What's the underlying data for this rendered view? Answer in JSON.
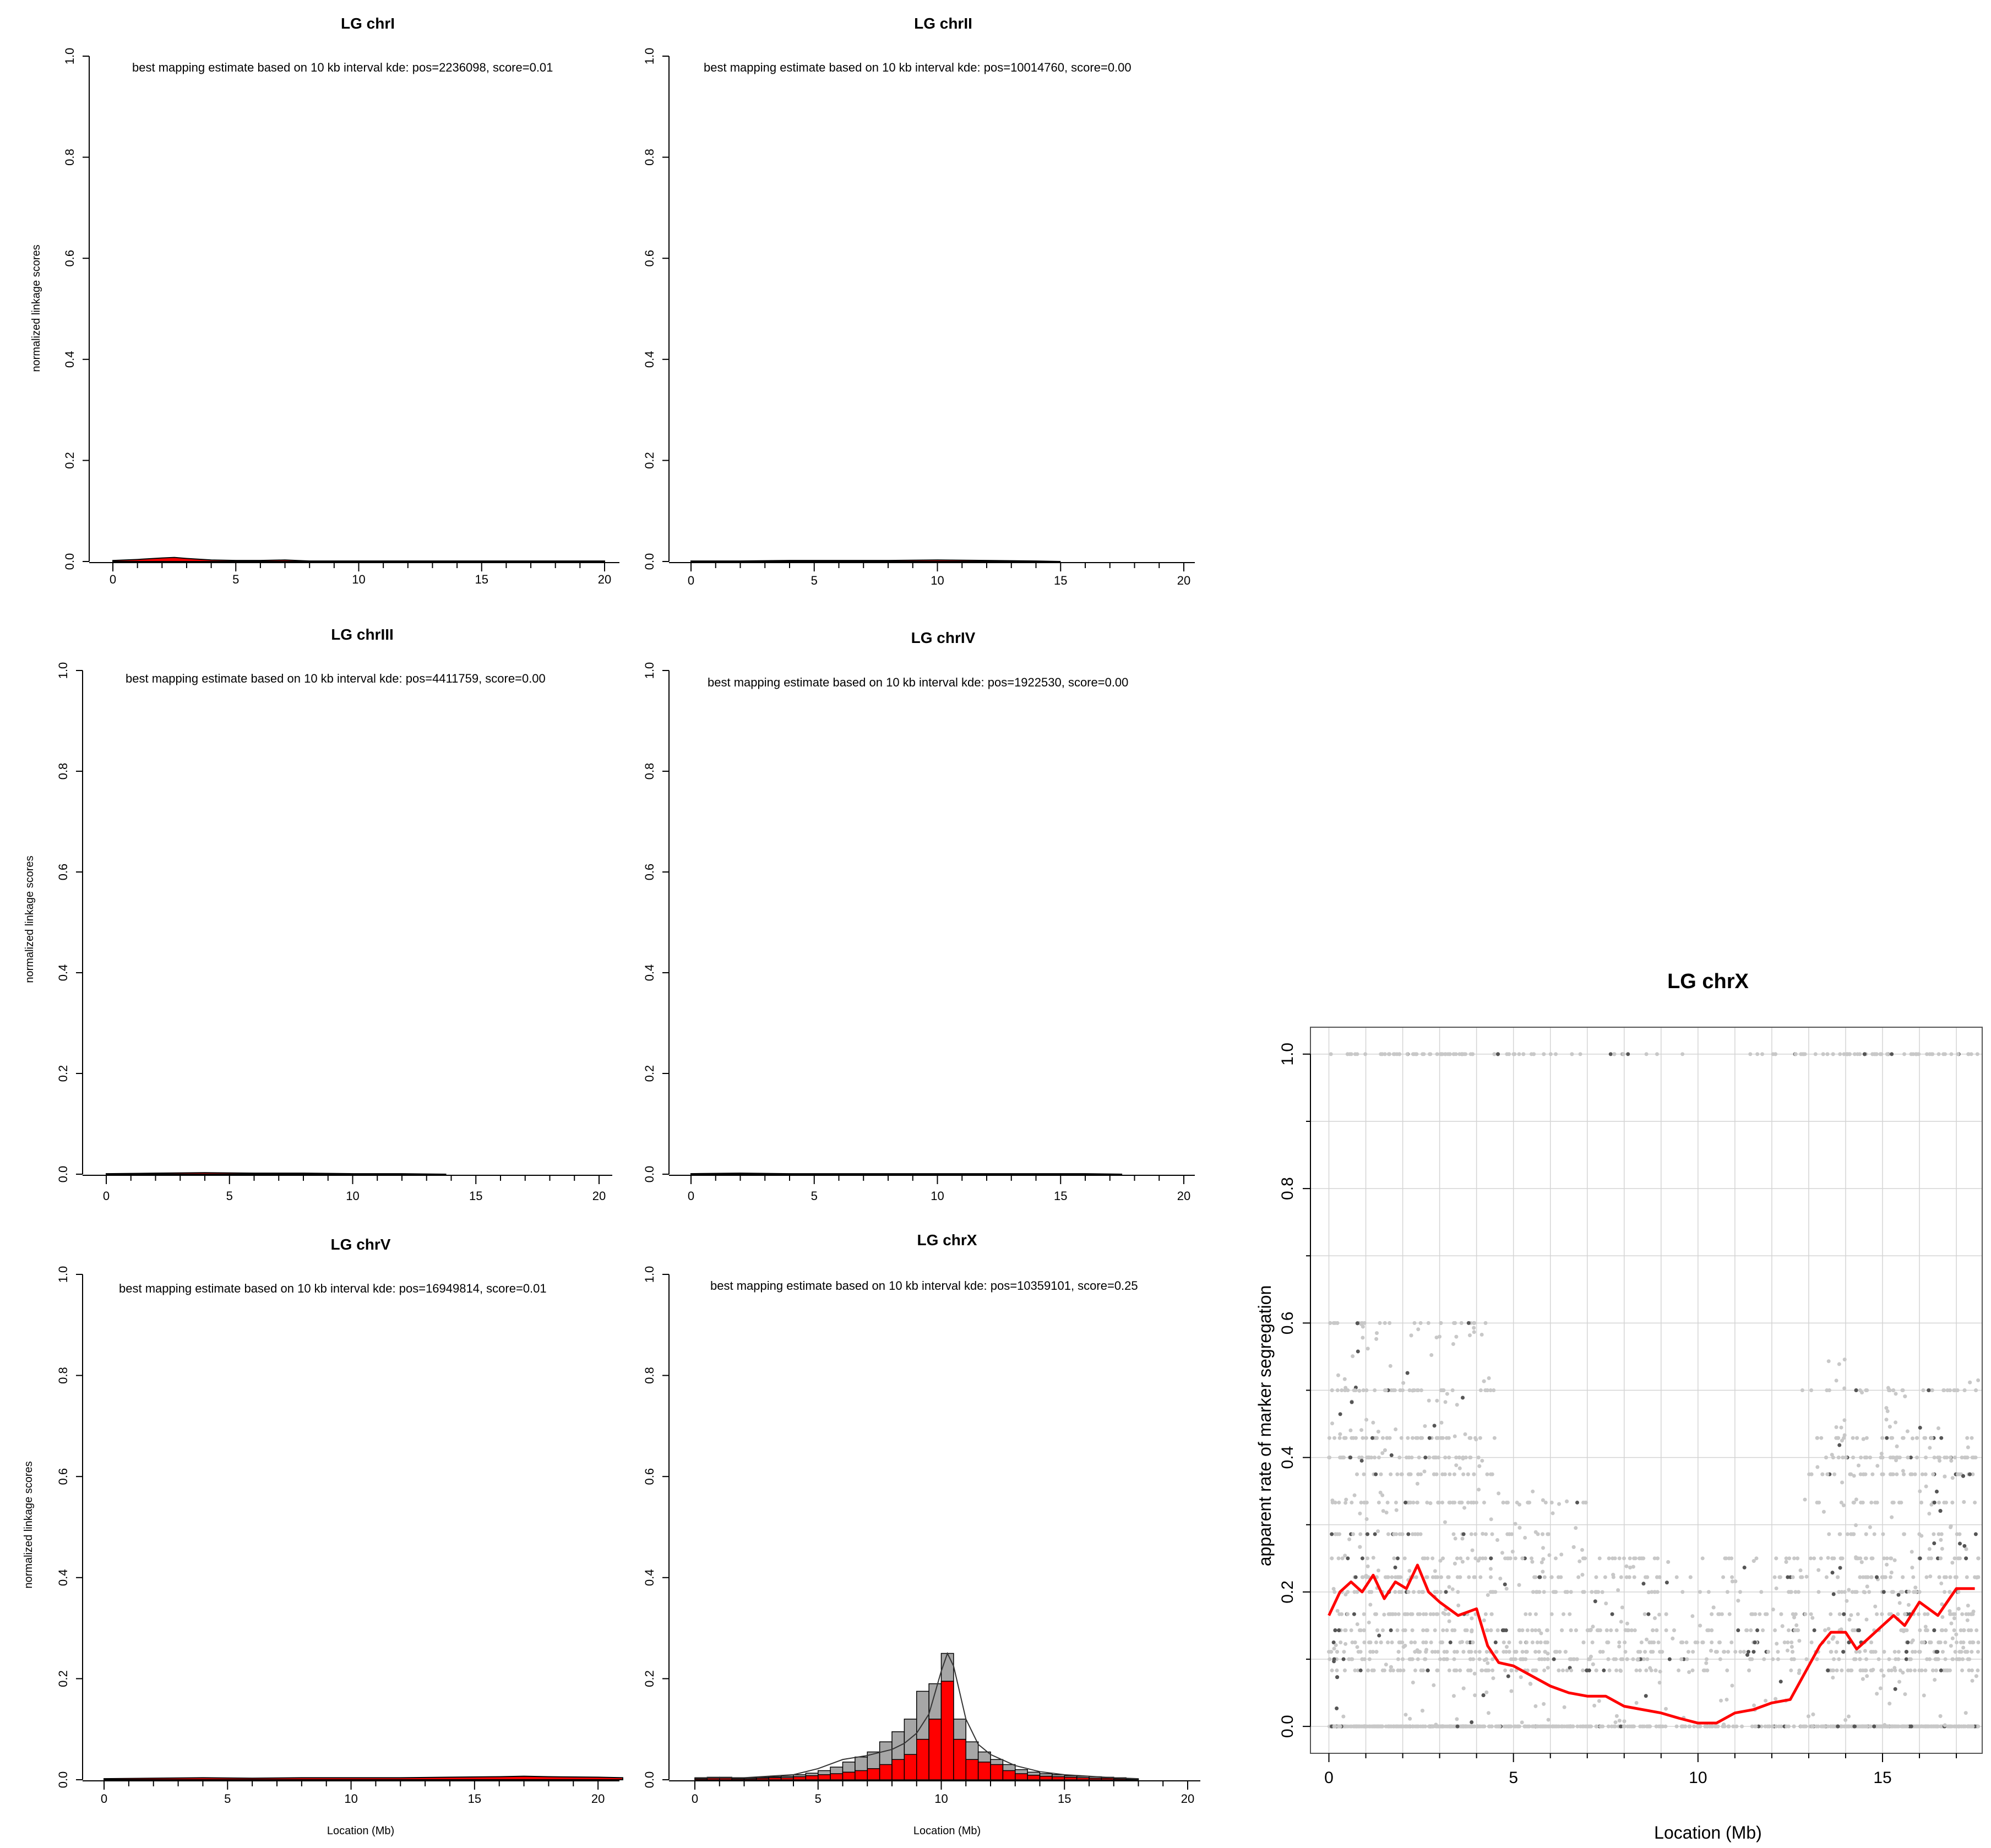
{
  "chart_data": [
    {
      "type": "area",
      "title": "LG chrI",
      "xlabel": "",
      "ylabel": "normalized linkage scores",
      "xlim": [
        0,
        20
      ],
      "ylim": [
        0,
        1
      ],
      "xticks": [
        "0",
        "5",
        "10",
        "15",
        "20"
      ],
      "yticks": [
        "0.0",
        "0.2",
        "0.4",
        "0.6",
        "0.8",
        "1.0"
      ],
      "annotation": "best mapping estimate based on 10 kb interval kde: pos=2236098, score=0.01",
      "x": [
        0,
        1,
        2,
        2.5,
        3,
        4,
        5,
        6,
        7,
        8,
        10,
        12,
        15,
        20
      ],
      "values": [
        0.002,
        0.004,
        0.007,
        0.008,
        0.006,
        0.003,
        0.002,
        0.002,
        0.003,
        0.001,
        0.001,
        0.001,
        0.001,
        0.001
      ]
    },
    {
      "type": "area",
      "title": "LG chrII",
      "xlabel": "",
      "ylabel": "",
      "xlim": [
        0,
        20
      ],
      "ylim": [
        0,
        1
      ],
      "xticks": [
        "0",
        "5",
        "10",
        "15",
        "20"
      ],
      "yticks": [
        "0.0",
        "0.2",
        "0.4",
        "0.6",
        "0.8",
        "1.0"
      ],
      "annotation": "best mapping estimate based on 10 kb interval kde: pos=10014760, score=0.00",
      "x": [
        0,
        2,
        4,
        6,
        8,
        10,
        12,
        14,
        15
      ],
      "values": [
        0.001,
        0.001,
        0.002,
        0.002,
        0.002,
        0.003,
        0.002,
        0.001,
        0.0
      ]
    },
    {
      "type": "area",
      "title": "LG chrIII",
      "xlabel": "",
      "ylabel": "normalized linkage scores",
      "xlim": [
        0,
        20
      ],
      "ylim": [
        0,
        1
      ],
      "xticks": [
        "0",
        "5",
        "10",
        "15",
        "20"
      ],
      "yticks": [
        "0.0",
        "0.2",
        "0.4",
        "0.6",
        "0.8",
        "1.0"
      ],
      "annotation": "best mapping estimate based on 10 kb interval kde: pos=4411759, score=0.00",
      "x": [
        0,
        2,
        4,
        6,
        8,
        10,
        12,
        13.8
      ],
      "values": [
        0.001,
        0.002,
        0.003,
        0.002,
        0.002,
        0.001,
        0.001,
        0.0
      ]
    },
    {
      "type": "area",
      "title": "LG chrIV",
      "xlabel": "",
      "ylabel": "",
      "xlim": [
        0,
        20
      ],
      "ylim": [
        0,
        1
      ],
      "xticks": [
        "0",
        "5",
        "10",
        "15",
        "20"
      ],
      "yticks": [
        "0.0",
        "0.2",
        "0.4",
        "0.6",
        "0.8",
        "1.0"
      ],
      "annotation": "best mapping estimate based on 10 kb interval kde: pos=1922530, score=0.00",
      "x": [
        0,
        2,
        4,
        6,
        8,
        10,
        12,
        14,
        16,
        17.5
      ],
      "values": [
        0.001,
        0.002,
        0.001,
        0.001,
        0.001,
        0.001,
        0.001,
        0.001,
        0.001,
        0.0
      ]
    },
    {
      "type": "area",
      "title": "LG chrV",
      "xlabel": "Location (Mb)",
      "ylabel": "normalized linkage scores",
      "xlim": [
        0,
        21
      ],
      "ylim": [
        0,
        1
      ],
      "xticks": [
        "0",
        "5",
        "10",
        "15",
        "20"
      ],
      "yticks": [
        "0.0",
        "0.2",
        "0.4",
        "0.6",
        "0.8",
        "1.0"
      ],
      "annotation": "best mapping estimate based on 10 kb interval kde: pos=16949814, score=0.01",
      "x": [
        0,
        2,
        4,
        6,
        8,
        10,
        12,
        14,
        16,
        17,
        18,
        20,
        21
      ],
      "values": [
        0.002,
        0.003,
        0.004,
        0.003,
        0.004,
        0.004,
        0.004,
        0.005,
        0.006,
        0.007,
        0.006,
        0.005,
        0.004
      ]
    },
    {
      "type": "bar",
      "title": "LG chrX",
      "xlabel": "Location (Mb)",
      "ylabel": "",
      "xlim": [
        0,
        20
      ],
      "ylim": [
        0,
        1
      ],
      "xticks": [
        "0",
        "5",
        "10",
        "15",
        "20"
      ],
      "yticks": [
        "0.0",
        "0.2",
        "0.4",
        "0.6",
        "0.8",
        "1.0"
      ],
      "annotation": "best mapping estimate based on 10 kb interval kde: pos=10359101, score=0.25",
      "bin_width": 0.5,
      "bin_starts": [
        0,
        0.5,
        1,
        1.5,
        2,
        2.5,
        3,
        3.5,
        4,
        4.5,
        5,
        5.5,
        6,
        6.5,
        7,
        7.5,
        8,
        8.5,
        9,
        9.5,
        10,
        10.5,
        11,
        11.5,
        12,
        12.5,
        13,
        13.5,
        14,
        14.5,
        15,
        15.5,
        16,
        16.5,
        17,
        17.5
      ],
      "series": [
        {
          "values": [
            0.004,
            0.005,
            0.005,
            0.004,
            0.004,
            0.005,
            0.006,
            0.007,
            0.01,
            0.013,
            0.018,
            0.025,
            0.035,
            0.045,
            0.055,
            0.075,
            0.095,
            0.12,
            0.175,
            0.19,
            0.25,
            0.12,
            0.075,
            0.055,
            0.04,
            0.03,
            0.02,
            0.015,
            0.012,
            0.01,
            0.008,
            0.007,
            0.006,
            0.005,
            0.004,
            0.002
          ]
        },
        {
          "values": [
            0.002,
            0.003,
            0.003,
            0.002,
            0.002,
            0.003,
            0.004,
            0.004,
            0.006,
            0.008,
            0.01,
            0.012,
            0.015,
            0.018,
            0.022,
            0.03,
            0.04,
            0.05,
            0.08,
            0.12,
            0.195,
            0.08,
            0.04,
            0.035,
            0.03,
            0.018,
            0.012,
            0.009,
            0.007,
            0.006,
            0.005,
            0.004,
            0.003,
            0.003,
            0.002,
            0.001
          ]
        }
      ],
      "kde": {
        "x": [
          0,
          2,
          4,
          5,
          6,
          7,
          8,
          8.5,
          9,
          9.5,
          10,
          10.25,
          10.5,
          11,
          11.5,
          12,
          13,
          14,
          15,
          16,
          17,
          18
        ],
        "values": [
          0.004,
          0.004,
          0.01,
          0.022,
          0.04,
          0.048,
          0.06,
          0.072,
          0.092,
          0.13,
          0.215,
          0.25,
          0.225,
          0.12,
          0.07,
          0.05,
          0.028,
          0.016,
          0.01,
          0.007,
          0.004,
          0.002
        ]
      },
      "colors": {
        "gray_bars": "#a6a6a6",
        "red_bars": "#ff0000"
      }
    },
    {
      "type": "scatter",
      "title": "LG chrX",
      "xlabel": "Location (Mb)",
      "ylabel": "apparent rate of marker segregation",
      "xlim": [
        -0.5,
        17.7
      ],
      "ylim": [
        -0.04,
        1.04
      ],
      "xticks": [
        "0",
        "5",
        "10",
        "15"
      ],
      "yticks": [
        "0.0",
        "0.2",
        "0.4",
        "0.6",
        "0.8",
        "1.0"
      ],
      "grid": true,
      "point_levels": [
        0,
        0.0833,
        0.1,
        0.111,
        0.125,
        0.143,
        0.167,
        0.2,
        0.222,
        0.25,
        0.286,
        0.333,
        0.375,
        0.4,
        0.429,
        0.5,
        0.6,
        0.667,
        0.75,
        0.8,
        1.0
      ],
      "trend": {
        "x": [
          0,
          0.3,
          0.6,
          0.9,
          1.2,
          1.5,
          1.8,
          2.1,
          2.4,
          2.7,
          3.0,
          3.5,
          4.0,
          4.3,
          4.6,
          5.0,
          5.5,
          6.0,
          6.5,
          7.0,
          7.5,
          8.0,
          8.5,
          9.0,
          9.5,
          10.0,
          10.5,
          11.0,
          11.5,
          12.0,
          12.5,
          13.0,
          13.3,
          13.6,
          14.0,
          14.3,
          14.6,
          15.0,
          15.3,
          15.6,
          16.0,
          16.5,
          17.0,
          17.5
        ],
        "values": [
          0.165,
          0.2,
          0.215,
          0.2,
          0.225,
          0.19,
          0.215,
          0.205,
          0.24,
          0.2,
          0.185,
          0.165,
          0.175,
          0.12,
          0.095,
          0.09,
          0.075,
          0.06,
          0.05,
          0.045,
          0.045,
          0.03,
          0.025,
          0.02,
          0.012,
          0.005,
          0.005,
          0.02,
          0.025,
          0.035,
          0.04,
          0.09,
          0.12,
          0.14,
          0.14,
          0.115,
          0.13,
          0.15,
          0.165,
          0.15,
          0.185,
          0.165,
          0.205,
          0.205
        ]
      },
      "colors": {
        "points": "#c8c8c8",
        "trend": "#ff0000"
      }
    }
  ]
}
